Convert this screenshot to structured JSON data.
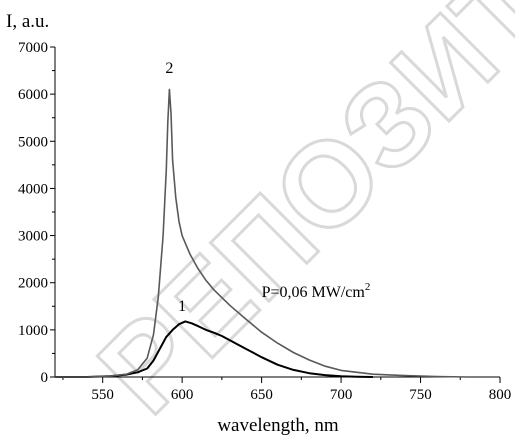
{
  "chart_data": {
    "type": "line",
    "title": "",
    "xlabel": "wavelength, nm",
    "ylabel": "I, a.u.",
    "xlim": [
      520,
      800
    ],
    "ylim": [
      0,
      7000
    ],
    "xticks": [
      550,
      600,
      650,
      700,
      750,
      800
    ],
    "yticks": [
      0,
      1000,
      2000,
      3000,
      4000,
      5000,
      6000,
      7000
    ],
    "grid": false,
    "annotation": {
      "text": "P=0,06 MW/cm",
      "superscript": "2",
      "x": 650,
      "y": 1700
    },
    "series": [
      {
        "label": "1",
        "color": "#000000",
        "label_at": [
          600,
          1400
        ],
        "x": [
          520,
          540,
          555,
          565,
          572,
          578,
          582,
          586,
          590,
          594,
          598,
          602,
          606,
          610,
          615,
          620,
          625,
          630,
          640,
          650,
          660,
          670,
          680,
          690,
          700,
          710,
          720
        ],
        "y": [
          0,
          0,
          20,
          50,
          100,
          180,
          350,
          600,
          850,
          1000,
          1120,
          1180,
          1140,
          1080,
          1000,
          940,
          870,
          780,
          600,
          420,
          260,
          150,
          80,
          40,
          15,
          5,
          0
        ]
      },
      {
        "label": "2",
        "color": "#595959",
        "label_at": [
          592,
          6450
        ],
        "x": [
          520,
          540,
          555,
          565,
          572,
          578,
          582,
          585,
          588,
          590,
          591,
          592,
          593,
          594,
          596,
          598,
          600,
          605,
          610,
          615,
          620,
          630,
          640,
          650,
          660,
          670,
          680,
          690,
          700,
          720,
          740,
          760,
          780
        ],
        "y": [
          0,
          0,
          20,
          60,
          150,
          400,
          900,
          1700,
          3000,
          4400,
          5400,
          6100,
          5600,
          4600,
          3800,
          3300,
          3000,
          2600,
          2300,
          2050,
          1850,
          1520,
          1230,
          950,
          720,
          520,
          360,
          230,
          140,
          60,
          30,
          10,
          0
        ]
      }
    ]
  },
  "watermark": {
    "text": "РЕПОЗИТОРИЙ"
  }
}
